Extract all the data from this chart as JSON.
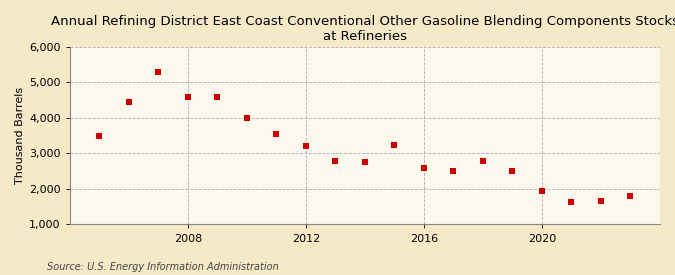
{
  "title_line1": "Annual Refining District East Coast Conventional Other Gasoline Blending Components Stocks",
  "title_line2": "at Refineries",
  "ylabel": "Thousand Barrels",
  "source": "Source: U.S. Energy Information Administration",
  "outer_bg": "#f5e9c8",
  "plot_bg": "#fdf8ee",
  "marker_color": "#cc0000",
  "years": [
    2005,
    2006,
    2007,
    2008,
    2009,
    2010,
    2011,
    2012,
    2013,
    2014,
    2015,
    2016,
    2017,
    2018,
    2019,
    2020,
    2021,
    2022,
    2023
  ],
  "values": [
    3500,
    4450,
    5300,
    4600,
    4600,
    4000,
    3550,
    3200,
    2800,
    2750,
    3250,
    2600,
    2500,
    2800,
    2500,
    1950,
    1625,
    1650,
    1800
  ],
  "ylim": [
    1000,
    6000
  ],
  "yticks": [
    1000,
    2000,
    3000,
    4000,
    5000,
    6000
  ],
  "xticks": [
    2008,
    2012,
    2016,
    2020
  ],
  "xlim": [
    2004,
    2024
  ],
  "grid_color": "#b0b0b0",
  "title_fontsize": 9.5,
  "axis_fontsize": 8,
  "source_fontsize": 7,
  "ylabel_fontsize": 8
}
